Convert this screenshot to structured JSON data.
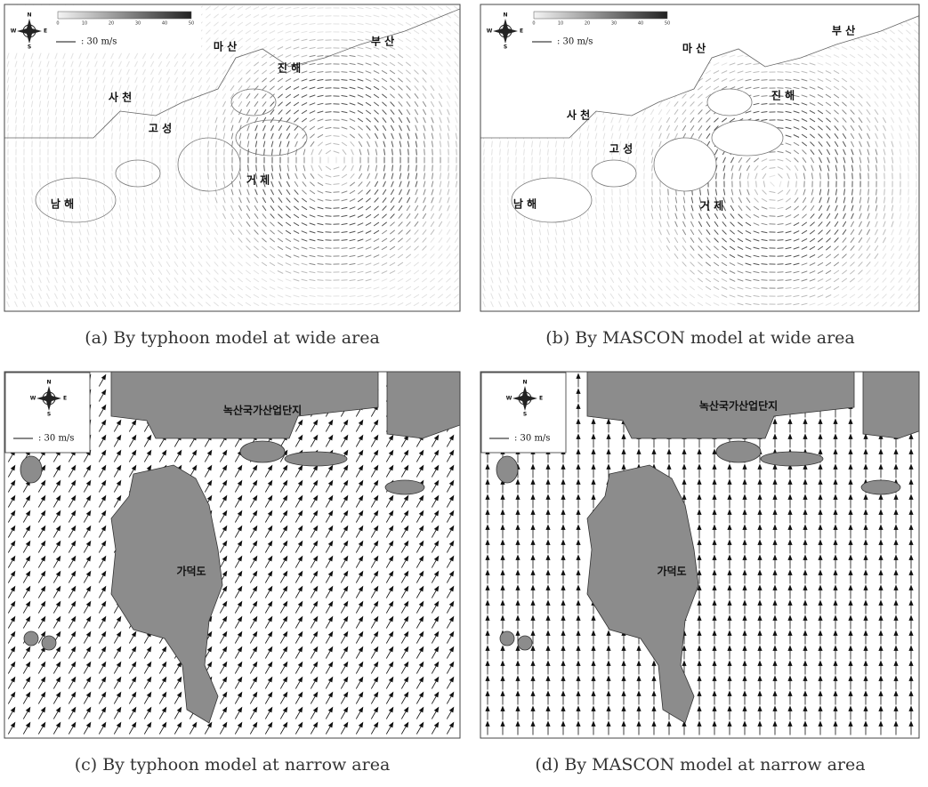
{
  "panels": [
    {
      "caption": "(a) By typhoon model at wide area",
      "scale_label": ": 30 m/s",
      "colorbar_ticks": [
        0,
        10,
        20,
        30,
        40,
        50
      ],
      "compass": [
        "N",
        "E",
        "S",
        "W"
      ],
      "place_labels": [
        "마 산",
        "부 산",
        "진 해",
        "사 천",
        "고 성",
        "거 제",
        "남 해"
      ]
    },
    {
      "caption": "(b) By MASCON model at wide area",
      "scale_label": ": 30 m/s",
      "colorbar_ticks": [
        0,
        10,
        20,
        30,
        40,
        50
      ],
      "compass": [
        "N",
        "E",
        "S",
        "W"
      ],
      "place_labels": [
        "마 산",
        "부 산",
        "진 해",
        "사 천",
        "고 성",
        "거 제",
        "남 해"
      ]
    },
    {
      "caption": "(c) By typhoon model at narrow area",
      "scale_label": ": 30 m/s",
      "compass": [
        "N",
        "E",
        "S",
        "W"
      ],
      "place_labels": [
        "녹산국가산업단지",
        "가덕도"
      ]
    },
    {
      "caption": "(d) By MASCON model at narrow area",
      "scale_label": ": 30 m/s",
      "compass": [
        "N",
        "E",
        "S",
        "W"
      ],
      "place_labels": [
        "녹산국가산업단지",
        "가덕도"
      ]
    }
  ]
}
